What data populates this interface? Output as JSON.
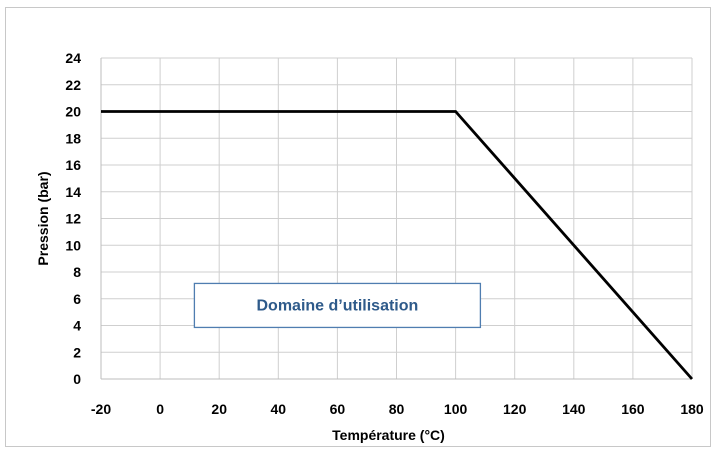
{
  "chart_data": {
    "type": "line",
    "title": "",
    "xlabel": "Température (°C)",
    "ylabel": "Pression (bar)",
    "xlim": [
      -20,
      180
    ],
    "ylim": [
      0,
      24
    ],
    "x_ticks": [
      -20,
      0,
      20,
      40,
      60,
      80,
      100,
      120,
      140,
      160,
      180
    ],
    "y_ticks": [
      0,
      2,
      4,
      6,
      8,
      10,
      12,
      14,
      16,
      18,
      20,
      22,
      24
    ],
    "grid": true,
    "legend": "none",
    "series": [
      {
        "x": [
          -20,
          100,
          180
        ],
        "y": [
          20,
          20,
          0
        ],
        "color": "#000000"
      }
    ],
    "annotations": [
      {
        "text": "Domaine d’utilisation",
        "x": 60,
        "y": 5.5,
        "text_color": "#2e5a8a",
        "border_color": "#4f7db0"
      }
    ]
  }
}
